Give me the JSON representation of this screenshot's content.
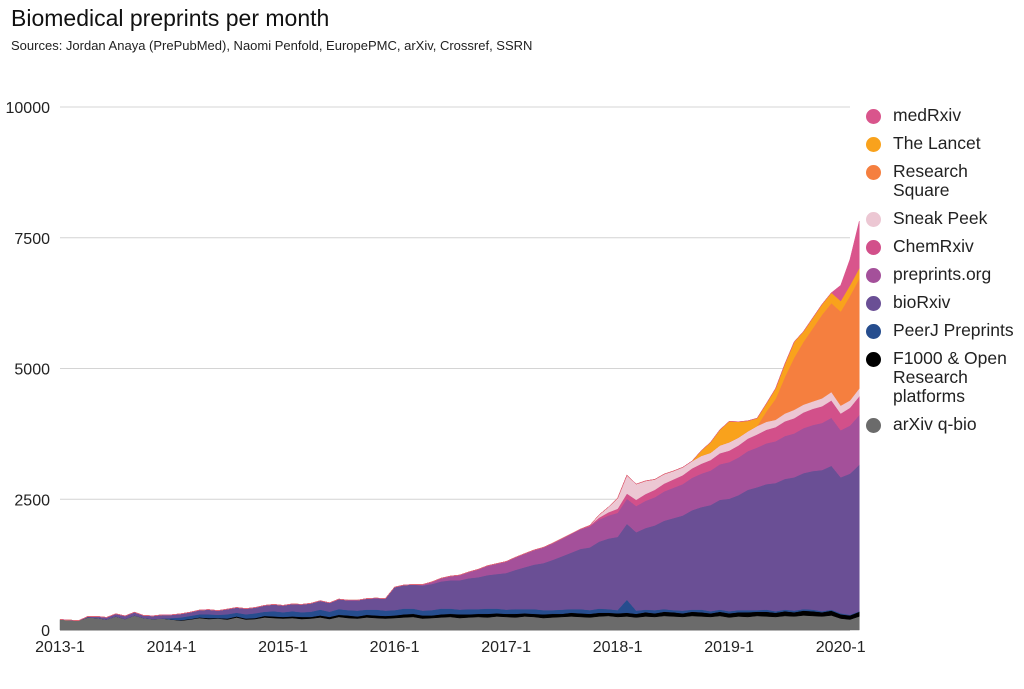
{
  "chart_data": {
    "type": "area",
    "stacked": true,
    "title": "Biomedical preprints per month",
    "subtitle": "Sources: Jordan Anaya (PrePubMed), Naomi Penfold, EuropePMC, arXiv, Crossref, SSRN",
    "xlabel": "",
    "ylabel": "",
    "x_start": "2013-1",
    "x_end": "2020-2",
    "x_ticks": [
      "2013-1",
      "2014-1",
      "2015-1",
      "2016-1",
      "2017-1",
      "2018-1",
      "2019-1",
      "2020-1"
    ],
    "ylim": [
      0,
      10000
    ],
    "y_ticks": [
      0,
      2500,
      5000,
      7500,
      10000
    ],
    "grid": "horizontal",
    "legend_position": "right",
    "series": [
      {
        "name": "arXiv q-bio",
        "color": "#6b6b6b",
        "values": [
          200,
          190,
          180,
          240,
          230,
          200,
          260,
          210,
          280,
          230,
          210,
          220,
          200,
          180,
          200,
          230,
          210,
          220,
          200,
          240,
          200,
          210,
          240,
          230,
          220,
          230,
          210,
          220,
          240,
          210,
          250,
          230,
          220,
          240,
          230,
          220,
          230,
          240,
          250,
          220,
          230,
          240,
          250,
          230,
          240,
          250,
          240,
          260,
          250,
          240,
          260,
          250,
          230,
          240,
          250,
          260,
          250,
          240,
          260,
          270,
          250,
          260,
          240,
          260,
          250,
          270,
          260,
          250,
          270,
          260,
          250,
          270,
          240,
          260,
          250,
          270,
          260,
          250,
          270,
          260,
          280,
          270,
          260,
          280,
          220,
          200,
          260
        ]
      },
      {
        "name": "F1000 & Open Research platforms",
        "color": "#000000",
        "values": [
          0,
          0,
          0,
          0,
          0,
          0,
          0,
          0,
          0,
          0,
          0,
          0,
          0,
          10,
          10,
          10,
          20,
          10,
          20,
          20,
          20,
          20,
          30,
          30,
          30,
          30,
          40,
          30,
          40,
          40,
          40,
          50,
          40,
          50,
          50,
          50,
          50,
          60,
          60,
          60,
          50,
          60,
          60,
          70,
          60,
          60,
          70,
          60,
          60,
          70,
          60,
          60,
          70,
          70,
          60,
          70,
          70,
          70,
          70,
          60,
          70,
          70,
          70,
          80,
          70,
          80,
          80,
          70,
          80,
          80,
          70,
          80,
          80,
          80,
          90,
          80,
          90,
          80,
          90,
          80,
          90,
          90,
          80,
          90,
          80,
          80,
          90
        ]
      },
      {
        "name": "PeerJ Preprints",
        "color": "#264d8e",
        "values": [
          0,
          0,
          0,
          0,
          0,
          0,
          0,
          0,
          0,
          0,
          0,
          0,
          30,
          50,
          60,
          60,
          70,
          60,
          80,
          70,
          80,
          90,
          80,
          100,
          90,
          100,
          90,
          100,
          110,
          100,
          110,
          100,
          110,
          100,
          110,
          100,
          100,
          110,
          100,
          90,
          100,
          110,
          100,
          90,
          100,
          90,
          100,
          90,
          80,
          90,
          80,
          90,
          80,
          70,
          80,
          70,
          80,
          70,
          80,
          70,
          60,
          250,
          60,
          50,
          60,
          50,
          40,
          50,
          40,
          50,
          40,
          40,
          40,
          40,
          40,
          30,
          40,
          30,
          30,
          30,
          30,
          30,
          20,
          20,
          20,
          10,
          10
        ]
      },
      {
        "name": "bioRxiv",
        "color": "#6a4f95",
        "values": [
          0,
          0,
          0,
          20,
          30,
          40,
          50,
          60,
          60,
          50,
          60,
          70,
          60,
          70,
          70,
          80,
          90,
          80,
          100,
          100,
          110,
          110,
          120,
          130,
          130,
          140,
          150,
          160,
          170,
          170,
          190,
          190,
          200,
          210,
          220,
          230,
          440,
          450,
          460,
          480,
          500,
          520,
          540,
          560,
          590,
          610,
          640,
          660,
          700,
          750,
          800,
          850,
          900,
          960,
          1020,
          1080,
          1150,
          1200,
          1280,
          1350,
          1400,
          1450,
          1500,
          1560,
          1620,
          1690,
          1760,
          1820,
          1900,
          1960,
          2030,
          2100,
          2150,
          2200,
          2300,
          2350,
          2400,
          2450,
          2500,
          2550,
          2600,
          2650,
          2700,
          2750,
          2600,
          2700,
          2800
        ]
      },
      {
        "name": "preprints.org",
        "color": "#a4509a",
        "values": [
          0,
          0,
          0,
          0,
          0,
          0,
          0,
          0,
          0,
          0,
          0,
          0,
          0,
          0,
          0,
          0,
          0,
          0,
          0,
          0,
          0,
          0,
          0,
          0,
          0,
          0,
          0,
          0,
          0,
          0,
          0,
          0,
          0,
          0,
          0,
          0,
          0,
          0,
          0,
          20,
          40,
          60,
          80,
          100,
          120,
          150,
          180,
          200,
          220,
          240,
          260,
          280,
          300,
          320,
          340,
          360,
          380,
          400,
          420,
          440,
          460,
          480,
          500,
          520,
          540,
          560,
          580,
          600,
          620,
          640,
          660,
          680,
          700,
          720,
          740,
          760,
          780,
          800,
          820,
          840,
          860,
          880,
          900,
          920,
          900,
          920,
          950
        ]
      },
      {
        "name": "ChemRxiv",
        "color": "#d2508a",
        "values": [
          0,
          0,
          0,
          0,
          0,
          0,
          0,
          0,
          0,
          0,
          0,
          0,
          0,
          0,
          0,
          0,
          0,
          0,
          0,
          0,
          0,
          0,
          0,
          0,
          0,
          0,
          0,
          0,
          0,
          0,
          0,
          0,
          0,
          0,
          0,
          0,
          0,
          0,
          0,
          0,
          0,
          0,
          0,
          0,
          0,
          0,
          0,
          0,
          0,
          0,
          0,
          0,
          0,
          0,
          0,
          0,
          0,
          20,
          40,
          60,
          80,
          100,
          120,
          130,
          140,
          150,
          160,
          170,
          180,
          190,
          200,
          210,
          220,
          230,
          240,
          250,
          260,
          270,
          280,
          290,
          300,
          310,
          320,
          330,
          320,
          340,
          360
        ]
      },
      {
        "name": "Sneak Peek",
        "color": "#ecc7d3",
        "values": [
          0,
          0,
          0,
          0,
          0,
          0,
          0,
          0,
          0,
          0,
          0,
          0,
          0,
          0,
          0,
          0,
          0,
          0,
          0,
          0,
          0,
          0,
          0,
          0,
          0,
          0,
          0,
          0,
          0,
          0,
          0,
          0,
          0,
          0,
          0,
          0,
          0,
          0,
          0,
          0,
          0,
          0,
          0,
          0,
          0,
          0,
          0,
          0,
          0,
          0,
          0,
          0,
          0,
          0,
          0,
          0,
          0,
          0,
          50,
          100,
          200,
          350,
          300,
          250,
          200,
          180,
          160,
          150,
          140,
          150,
          140,
          150,
          160,
          150,
          140,
          160,
          150,
          140,
          150,
          160,
          150,
          140,
          150,
          160,
          150,
          140,
          150
        ]
      },
      {
        "name": "Research Square",
        "color": "#f57f3f",
        "values": [
          0,
          0,
          0,
          0,
          0,
          0,
          0,
          0,
          0,
          0,
          0,
          0,
          0,
          0,
          0,
          0,
          0,
          0,
          0,
          0,
          0,
          0,
          0,
          0,
          0,
          0,
          0,
          0,
          0,
          0,
          0,
          0,
          0,
          0,
          0,
          0,
          0,
          0,
          0,
          0,
          0,
          0,
          0,
          0,
          0,
          0,
          0,
          0,
          0,
          0,
          0,
          0,
          0,
          0,
          0,
          0,
          0,
          0,
          0,
          0,
          0,
          0,
          0,
          0,
          0,
          0,
          0,
          0,
          0,
          0,
          0,
          0,
          0,
          0,
          0,
          0,
          200,
          400,
          700,
          1000,
          1200,
          1400,
          1600,
          1700,
          1800,
          2000,
          2100
        ]
      },
      {
        "name": "The Lancet",
        "color": "#f9a21c",
        "values": [
          0,
          0,
          0,
          0,
          0,
          0,
          0,
          0,
          0,
          0,
          0,
          0,
          0,
          0,
          0,
          0,
          0,
          0,
          0,
          0,
          0,
          0,
          0,
          0,
          0,
          0,
          0,
          0,
          0,
          0,
          0,
          0,
          0,
          0,
          0,
          0,
          0,
          0,
          0,
          0,
          0,
          0,
          0,
          0,
          0,
          0,
          0,
          0,
          0,
          0,
          0,
          0,
          0,
          0,
          0,
          0,
          0,
          0,
          0,
          0,
          0,
          0,
          0,
          0,
          0,
          0,
          0,
          0,
          0,
          100,
          200,
          300,
          400,
          300,
          200,
          150,
          150,
          200,
          250,
          300,
          200,
          200,
          200,
          200,
          200,
          200,
          200
        ]
      },
      {
        "name": "medRxiv",
        "color": "#d9558c",
        "values": [
          0,
          0,
          0,
          0,
          0,
          0,
          0,
          0,
          0,
          0,
          0,
          0,
          0,
          0,
          0,
          0,
          0,
          0,
          0,
          0,
          0,
          0,
          0,
          0,
          0,
          0,
          0,
          0,
          0,
          0,
          0,
          0,
          0,
          0,
          0,
          0,
          0,
          0,
          0,
          0,
          0,
          0,
          0,
          0,
          0,
          0,
          0,
          0,
          0,
          0,
          0,
          0,
          0,
          0,
          0,
          0,
          0,
          0,
          0,
          0,
          0,
          0,
          0,
          0,
          0,
          0,
          0,
          0,
          0,
          0,
          0,
          0,
          0,
          0,
          0,
          0,
          0,
          0,
          0,
          0,
          0,
          0,
          0,
          0,
          300,
          500,
          900
        ]
      }
    ]
  }
}
